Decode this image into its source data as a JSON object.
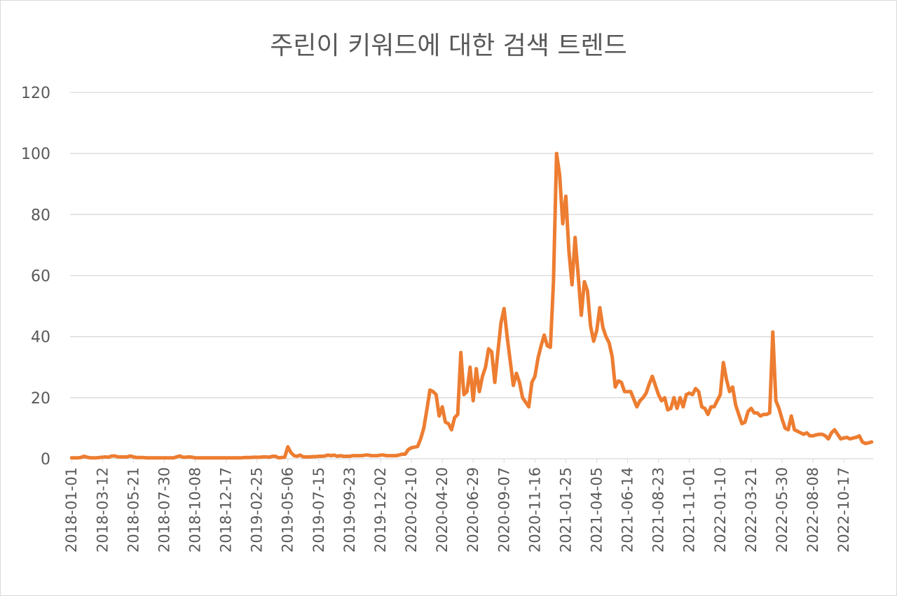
{
  "chart_data": {
    "type": "line",
    "title": "주린이 키워드에 대한 검색 트렌드",
    "xlabel": "",
    "ylabel": "",
    "ylim": [
      0,
      120
    ],
    "yticks": [
      0,
      20,
      40,
      60,
      80,
      100,
      120
    ],
    "grid": true,
    "legend": "none",
    "line_color": "#ED7D31",
    "grid_color": "#D9D9D9",
    "x_tick_labels": [
      "2018-01-01",
      "2018-03-12",
      "2018-05-21",
      "2018-07-30",
      "2018-10-08",
      "2018-12-17",
      "2019-02-25",
      "2019-05-06",
      "2019-07-15",
      "2019-09-23",
      "2019-12-02",
      "2020-02-10",
      "2020-04-20",
      "2020-06-29",
      "2020-09-07",
      "2020-11-16",
      "2021-01-25",
      "2021-04-05",
      "2021-06-14",
      "2021-08-23",
      "2021-11-01",
      "2022-01-10",
      "2022-03-21",
      "2022-05-30",
      "2022-08-08",
      "2022-10-17"
    ],
    "x_start": "2018-01-01",
    "x_interval_days": 7,
    "values": [
      0.3,
      0.3,
      0.3,
      0.4,
      0.8,
      0.5,
      0.3,
      0.3,
      0.3,
      0.4,
      0.5,
      0.6,
      0.5,
      0.9,
      0.9,
      0.6,
      0.6,
      0.6,
      0.6,
      0.9,
      0.6,
      0.4,
      0.4,
      0.4,
      0.3,
      0.3,
      0.3,
      0.3,
      0.3,
      0.3,
      0.3,
      0.3,
      0.3,
      0.3,
      0.6,
      0.9,
      0.5,
      0.5,
      0.6,
      0.5,
      0.3,
      0.3,
      0.3,
      0.3,
      0.3,
      0.3,
      0.3,
      0.3,
      0.3,
      0.3,
      0.3,
      0.3,
      0.3,
      0.3,
      0.3,
      0.3,
      0.4,
      0.4,
      0.4,
      0.5,
      0.5,
      0.5,
      0.6,
      0.6,
      0.5,
      0.8,
      0.8,
      0.3,
      0.4,
      0.5,
      3.9,
      2.0,
      1.0,
      0.8,
      1.2,
      0.6,
      0.6,
      0.6,
      0.7,
      0.7,
      0.8,
      0.8,
      0.9,
      1.2,
      1.0,
      1.2,
      0.8,
      1.0,
      0.8,
      0.8,
      0.8,
      1.0,
      1.0,
      1.0,
      1.0,
      1.2,
      1.2,
      1.0,
      1.0,
      1.0,
      1.2,
      1.2,
      1.0,
      1.0,
      1.0,
      1.0,
      1.2,
      1.5,
      1.5,
      3.0,
      3.6,
      3.8,
      4.0,
      6.5,
      10.0,
      16.0,
      22.5,
      22.0,
      21.0,
      14.0,
      17.0,
      12.0,
      11.5,
      9.5,
      13.5,
      14.5,
      34.8,
      21.0,
      22.0,
      30.0,
      19.0,
      29.5,
      22.0,
      27.0,
      30.0,
      36.0,
      35.0,
      25.0,
      35.0,
      44.5,
      49.2,
      40.0,
      32.0,
      24.0,
      28.0,
      25.0,
      20.0,
      18.5,
      17.0,
      25.0,
      27.0,
      33.0,
      37.0,
      40.5,
      37.0,
      36.5,
      58.0,
      100.0,
      93.0,
      77.0,
      86.0,
      68.0,
      57.0,
      72.5,
      60.0,
      47.0,
      58.0,
      55.0,
      43.5,
      38.5,
      42.0,
      49.5,
      43.0,
      40.0,
      38.0,
      33.5,
      23.5,
      25.5,
      25.0,
      22.0,
      22.0,
      22.0,
      19.5,
      17.0,
      19.0,
      20.0,
      21.5,
      24.5,
      27.0,
      24.0,
      21.0,
      19.0,
      20.0,
      16.0,
      16.5,
      20.0,
      16.5,
      20.0,
      17.0,
      21.0,
      21.5,
      21.0,
      23.0,
      22.0,
      17.0,
      16.5,
      14.5,
      17.0,
      17.0,
      19.0,
      21.0,
      31.5,
      26.0,
      22.0,
      23.5,
      17.5,
      14.5,
      11.5,
      12.0,
      15.5,
      16.5,
      15.0,
      15.0,
      14.0,
      14.5,
      14.5,
      15.0,
      41.5,
      19.0,
      16.5,
      13.0,
      10.0,
      9.5,
      14.0,
      9.5,
      9.0,
      8.5,
      8.0,
      8.5,
      7.5,
      7.5,
      7.8,
      8.0,
      8.0,
      7.5,
      6.5,
      8.5,
      9.5,
      8.0,
      6.5,
      6.8,
      7.0,
      6.5,
      6.8,
      7.0,
      7.5,
      5.5,
      5.0,
      5.2,
      5.5
    ]
  }
}
